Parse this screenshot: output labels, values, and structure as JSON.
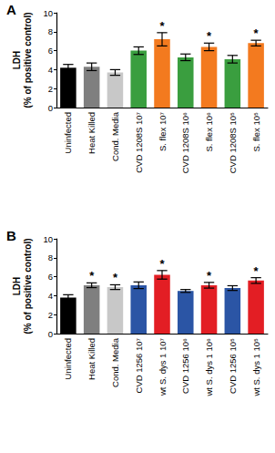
{
  "chart_data": [
    {
      "type": "bar",
      "title": "A",
      "y_label": "LDH\n(% of positive control)",
      "categories": [
        "Uninfected",
        "Heat Killed",
        "Cond. Media",
        "CVD 1208S 10⁷",
        "S. flex 10⁷",
        "CVD 1208S 10⁶",
        "S. flex 10⁶",
        "CVD 1208S 10⁵",
        "S. flex 10⁵"
      ],
      "values": [
        4.2,
        4.3,
        3.7,
        6.0,
        7.2,
        5.3,
        6.4,
        5.1,
        6.8
      ],
      "errors": [
        0.35,
        0.4,
        0.3,
        0.4,
        0.7,
        0.35,
        0.4,
        0.4,
        0.3
      ],
      "annotations": [
        null,
        null,
        null,
        null,
        "*",
        null,
        "*",
        null,
        "*"
      ],
      "colors": [
        "#000000",
        "#7f7f7f",
        "#c8c8c8",
        "#3a9e3f",
        "#f37a1f",
        "#3a9e3f",
        "#f37a1f",
        "#3a9e3f",
        "#f37a1f"
      ],
      "ylim": [
        0,
        10
      ],
      "yticks": [
        0,
        2,
        4,
        6,
        8,
        10
      ],
      "grid": false
    },
    {
      "type": "bar",
      "title": "B",
      "y_label": "LDH\n(% of positive control)",
      "categories": [
        "Uninfected",
        "Heat Killed",
        "Cond. Media",
        "CVD 1256 10⁷",
        "wt S. dys 1 10⁷",
        "CVD 1256 10⁶",
        "wt S. dys 1 10⁶",
        "CVD 1256 10⁵",
        "wt S. dys 1 10⁵"
      ],
      "values": [
        3.8,
        5.1,
        4.9,
        5.1,
        6.2,
        4.5,
        5.1,
        4.8,
        5.6
      ],
      "errors": [
        0.3,
        0.25,
        0.25,
        0.35,
        0.45,
        0.15,
        0.3,
        0.25,
        0.3
      ],
      "annotations": [
        null,
        "*",
        "*",
        null,
        "*",
        null,
        "*",
        null,
        "*"
      ],
      "colors": [
        "#000000",
        "#7f7f7f",
        "#c8c8c8",
        "#2b55a5",
        "#e31e24",
        "#2b55a5",
        "#e31e24",
        "#2b55a5",
        "#e31e24"
      ],
      "ylim": [
        0,
        10
      ],
      "yticks": [
        0,
        2,
        4,
        6,
        8,
        10
      ],
      "grid": false
    }
  ]
}
